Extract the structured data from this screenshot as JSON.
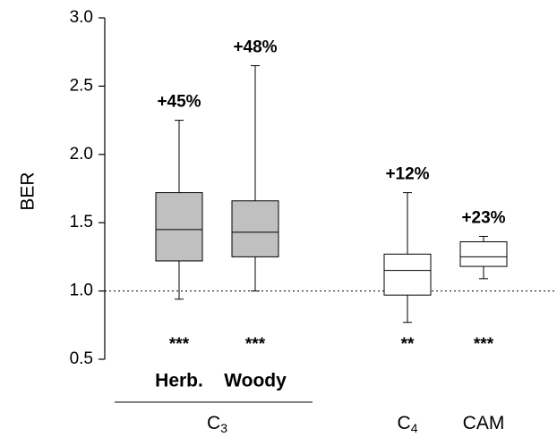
{
  "chart_data": {
    "type": "box",
    "y_label": "BER",
    "ylim": [
      0.5,
      3.0
    ],
    "yticks": [
      {
        "value": 0.5,
        "label": "0.5"
      },
      {
        "value": 1,
        "label": "1.0"
      },
      {
        "value": 1.5,
        "label": "1.5"
      },
      {
        "value": 2,
        "label": "2.0"
      },
      {
        "value": 2.5,
        "label": "2.5"
      },
      {
        "value": 3,
        "label": "3.0"
      }
    ],
    "reference_line": 1,
    "categories": [
      "Herb.",
      "Woody",
      null,
      null
    ],
    "groups": [
      {
        "label": "C",
        "subscript": "3",
        "members": [
          0,
          1
        ]
      },
      {
        "label": "C",
        "subscript": "4",
        "members": [
          2
        ]
      },
      {
        "label": "CAM",
        "members": [
          3
        ]
      }
    ],
    "boxes": [
      {
        "low": 0.94,
        "q1": 1.22,
        "median": 1.45,
        "q3": 1.72,
        "high": 2.25,
        "color": "#c0c0c0",
        "annotation": "+45%",
        "significance": "***"
      },
      {
        "low": 1.0,
        "q1": 1.25,
        "median": 1.43,
        "q3": 1.66,
        "high": 2.65,
        "color": "#c0c0c0",
        "annotation": "+48%",
        "significance": "***"
      },
      {
        "low": 0.77,
        "q1": 0.97,
        "median": 1.15,
        "q3": 1.27,
        "high": 1.72,
        "color": "#ffffff",
        "annotation": "+12%",
        "significance": "**"
      },
      {
        "low": 1.09,
        "q1": 1.18,
        "median": 1.25,
        "q3": 1.36,
        "high": 1.4,
        "color": "#ffffff",
        "annotation": "+23%",
        "significance": "***"
      }
    ]
  }
}
